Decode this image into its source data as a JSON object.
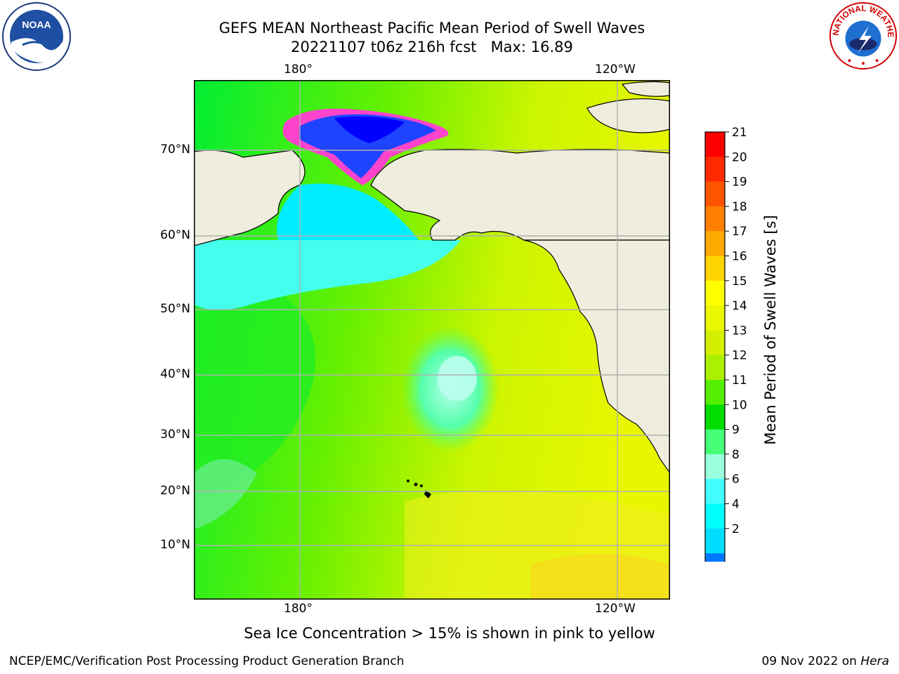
{
  "title": {
    "line1": "GEFS MEAN Northeast Pacific Mean Period of Swell Waves",
    "line2": "20221107 t06z 216h fcst   Max: 16.89"
  },
  "logos": {
    "left": "noaa-logo",
    "right": "national-weather-service-logo",
    "left_text": "NOAA",
    "right_text": "NATIONAL WEATHER SERVICE"
  },
  "map": {
    "top_lon_labels": [
      "180°",
      "120°W"
    ],
    "bottom_lon_labels": [
      "180°",
      "120°W"
    ],
    "lat_labels": [
      "70°N",
      "60°N",
      "50°N",
      "40°N",
      "30°N",
      "20°N",
      "10°N"
    ],
    "land_color": "#efeddd",
    "grid_color": "#b0b0b0"
  },
  "colorbar": {
    "title": "Mean Period of Swell Waves [s]",
    "ticks": [
      "21",
      "20",
      "19",
      "18",
      "17",
      "16",
      "15",
      "14",
      "13",
      "12",
      "11",
      "10",
      "9",
      "8",
      "6",
      "4",
      "2"
    ],
    "colors": [
      "#ff0000",
      "#ff2a00",
      "#ff5500",
      "#ff8000",
      "#ffaa00",
      "#ffd500",
      "#ffff00",
      "#eaf700",
      "#d4f000",
      "#aaf000",
      "#55ee00",
      "#00dd00",
      "#44ff77",
      "#99ffdd",
      "#44ffff",
      "#00ffff",
      "#00ddff",
      "#0077ff",
      "#0000ff"
    ]
  },
  "ice_note": "Sea Ice Concentration > 15% is shown in pink to yellow",
  "footer": {
    "left": "NCEP/EMC/Verification Post Processing Product Generation Branch",
    "right_prefix": "09 Nov 2022 on ",
    "right_host": "Hera"
  }
}
